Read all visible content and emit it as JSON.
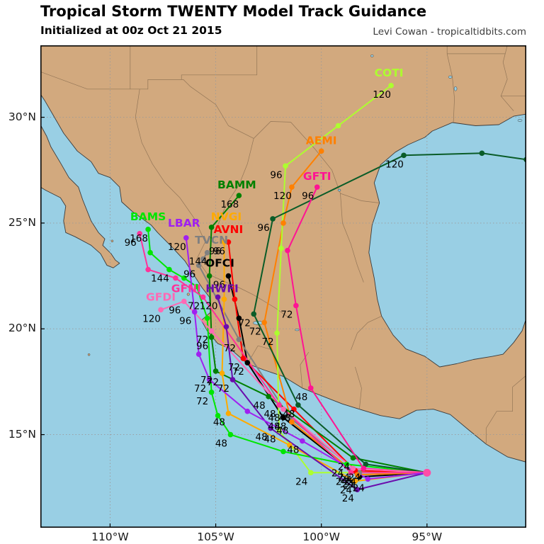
{
  "header": {
    "title": "Tropical Storm TWENTY Model Track Guidance",
    "subtitle": "Initialized at 00z Oct 21 2015",
    "credit": "Levi Cowan - tropicaltidbits.com"
  },
  "map": {
    "lon_min": -113.3,
    "lon_max": -90.3,
    "lat_min": 10.6,
    "lat_max": 33.4,
    "colors": {
      "water": "#99cfe4",
      "land": "#d2a97e",
      "coast": "#3c3c3c",
      "state_border": "#8f7355",
      "grid": "#9a9a9a",
      "frame": "#000000",
      "start_marker": "#ff4da6"
    }
  },
  "axes": {
    "x_ticks": [
      {
        "lon": -110,
        "label": "110°W"
      },
      {
        "lon": -105,
        "label": "105°W"
      },
      {
        "lon": -100,
        "label": "100°W"
      },
      {
        "lon": -95,
        "label": "95°W"
      }
    ],
    "y_ticks": [
      {
        "lat": 30,
        "label": "30°N"
      },
      {
        "lat": 25,
        "label": "25°N"
      },
      {
        "lat": 20,
        "label": "20°N"
      },
      {
        "lat": 15,
        "label": "15°N"
      }
    ]
  },
  "chart_data": {
    "type": "line",
    "title": "Tropical Storm TWENTY Model Track Guidance",
    "subtitle": "Initialized at 00z Oct 21 2015",
    "grid": true,
    "start": {
      "lon": -95.0,
      "lat": 13.2
    },
    "hour_label_values": [
      "24",
      "48",
      "72",
      "96",
      "120",
      "144",
      "168"
    ],
    "series": [
      {
        "model": "OFCI",
        "color": "#000000",
        "label_lon": -104.8,
        "label_lat": 23.1,
        "points": [
          [
            -95.0,
            13.2,
            ""
          ],
          [
            -98.2,
            13.0,
            "24"
          ],
          [
            -101.8,
            15.8,
            "48"
          ],
          [
            -103.5,
            18.4,
            "72"
          ],
          [
            -103.9,
            20.5,
            ""
          ],
          [
            -104.4,
            22.5,
            "96"
          ]
        ]
      },
      {
        "model": "TVCN",
        "color": "#808080",
        "label_lon": -105.2,
        "label_lat": 24.2,
        "points": [
          [
            -95.0,
            13.2,
            ""
          ],
          [
            -98.2,
            13.2,
            "24"
          ],
          [
            -101.5,
            15.8,
            "48"
          ],
          [
            -103.9,
            19.5,
            "72"
          ],
          [
            -105.8,
            23.0,
            "96"
          ],
          [
            -105.6,
            23.3,
            ""
          ],
          [
            -105.4,
            23.6,
            "144"
          ]
        ]
      },
      {
        "model": "AVNI",
        "color": "#ff0000",
        "label_lon": -104.4,
        "label_lat": 24.7,
        "points": [
          [
            -95.0,
            13.2,
            ""
          ],
          [
            -98.4,
            13.3,
            "24"
          ],
          [
            -101.3,
            16.2,
            "48"
          ],
          [
            -103.7,
            18.6,
            "72"
          ],
          [
            -104.1,
            21.4,
            ""
          ],
          [
            -104.4,
            24.1,
            "96"
          ]
        ]
      },
      {
        "model": "AEMI",
        "color": "#ff8000",
        "label_lon": -100.0,
        "label_lat": 28.9,
        "points": [
          [
            -95.0,
            13.2,
            ""
          ],
          [
            -98.3,
            13.1,
            "24"
          ],
          [
            -101.4,
            15.6,
            "48"
          ],
          [
            -102.7,
            20.3,
            "72"
          ],
          [
            -101.8,
            25.0,
            ""
          ],
          [
            -101.4,
            26.7,
            "120"
          ],
          [
            -100.0,
            28.4,
            ""
          ]
        ]
      },
      {
        "model": "NVGI",
        "color": "#ffaa00",
        "label_lon": -104.5,
        "label_lat": 25.3,
        "points": [
          [
            -95.0,
            13.2,
            ""
          ],
          [
            -98.4,
            12.8,
            "24"
          ],
          [
            -101.5,
            14.5,
            ""
          ],
          [
            -104.4,
            16.0,
            "48"
          ],
          [
            -104.7,
            17.9,
            "72"
          ],
          [
            -104.6,
            21.4,
            ""
          ],
          [
            -104.6,
            24.1,
            "96"
          ]
        ]
      },
      {
        "model": "COTI",
        "color": "#adff2f",
        "label_lon": -96.8,
        "label_lat": 32.1,
        "points": [
          [
            -95.0,
            13.2,
            ""
          ],
          [
            -100.5,
            13.2,
            "24"
          ],
          [
            -102.0,
            15.2,
            "48"
          ],
          [
            -102.1,
            19.8,
            "72"
          ],
          [
            -101.9,
            23.8,
            ""
          ],
          [
            -101.7,
            27.7,
            "96"
          ],
          [
            -99.2,
            29.6,
            ""
          ],
          [
            -96.7,
            31.5,
            "120"
          ]
        ]
      },
      {
        "model": "BAMS",
        "color": "#00e600",
        "label_lon": -108.2,
        "label_lat": 25.3,
        "points": [
          [
            -95.0,
            13.2,
            ""
          ],
          [
            -98.8,
            13.6,
            "24"
          ],
          [
            -101.8,
            14.2,
            ""
          ],
          [
            -104.3,
            15.0,
            "48"
          ],
          [
            -104.9,
            15.9,
            ""
          ],
          [
            -105.2,
            17.0,
            "72"
          ],
          [
            -105.4,
            20.5,
            ""
          ],
          [
            -105.9,
            22.0,
            ""
          ],
          [
            -106.5,
            22.4,
            ""
          ],
          [
            -107.2,
            22.8,
            "144"
          ],
          [
            -108.1,
            23.6,
            ""
          ],
          [
            -108.2,
            24.7,
            "168"
          ]
        ]
      },
      {
        "model": "BAMM",
        "color": "#008000",
        "label_lon": -104.0,
        "label_lat": 26.8,
        "points": [
          [
            -95.0,
            13.2,
            ""
          ],
          [
            -98.5,
            13.9,
            "24"
          ],
          [
            -102.5,
            16.8,
            "48"
          ],
          [
            -105.0,
            18.0,
            "72"
          ],
          [
            -105.2,
            19.6,
            "96"
          ],
          [
            -105.3,
            22.5,
            ""
          ],
          [
            -105.2,
            24.8,
            ""
          ],
          [
            -103.9,
            26.3,
            "168"
          ]
        ]
      },
      {
        "model": "",
        "color": "#0a5c28",
        "label_lon": null,
        "label_lat": null,
        "points": [
          [
            -95.0,
            13.2,
            ""
          ],
          [
            -97.9,
            13.6,
            ""
          ],
          [
            -101.1,
            16.4,
            "48"
          ],
          [
            -103.2,
            20.7,
            "72"
          ],
          [
            -102.3,
            25.2,
            "96"
          ],
          [
            -96.1,
            28.2,
            "120"
          ],
          [
            -92.4,
            28.3,
            ""
          ],
          [
            -90.3,
            28.0,
            ""
          ]
        ]
      },
      {
        "model": "GFTI",
        "color": "#ff1493",
        "label_lon": -100.2,
        "label_lat": 27.2,
        "points": [
          [
            -95.0,
            13.2,
            ""
          ],
          [
            -98.0,
            13.4,
            "24"
          ],
          [
            -100.5,
            17.2,
            "48"
          ],
          [
            -101.2,
            21.1,
            "72"
          ],
          [
            -101.6,
            23.7,
            ""
          ],
          [
            -100.2,
            26.7,
            "96"
          ]
        ]
      },
      {
        "model": "GFDI",
        "color": "#ff69b4",
        "label_lon": -107.6,
        "label_lat": 21.5,
        "points": [
          [
            -95.0,
            13.2,
            ""
          ],
          [
            -98.5,
            13.4,
            "24"
          ],
          [
            -101.8,
            16.2,
            "48"
          ],
          [
            -105.2,
            19.9,
            "72"
          ],
          [
            -106.5,
            21.3,
            "96"
          ],
          [
            -107.6,
            20.9,
            "120"
          ]
        ]
      },
      {
        "model": "GFNI",
        "color": "#ff3399",
        "label_lon": -106.4,
        "label_lat": 21.9,
        "points": [
          [
            -95.0,
            13.2,
            ""
          ],
          [
            -98.6,
            13.2,
            "24"
          ],
          [
            -102.0,
            16.4,
            "48"
          ],
          [
            -105.6,
            21.5,
            "72"
          ],
          [
            -106.9,
            22.4,
            ""
          ],
          [
            -108.2,
            22.8,
            ""
          ],
          [
            -108.6,
            24.5,
            "96"
          ]
        ]
      },
      {
        "model": "HWFI",
        "color": "#6a0dad",
        "label_lon": -104.7,
        "label_lat": 21.9,
        "points": [
          [
            -95.0,
            13.2,
            ""
          ],
          [
            -98.3,
            12.4,
            "24"
          ],
          [
            -102.4,
            15.3,
            "48"
          ],
          [
            -104.2,
            17.6,
            "72"
          ],
          [
            -104.5,
            20.1,
            ""
          ],
          [
            -104.9,
            21.5,
            "120"
          ]
        ]
      },
      {
        "model": "LBAR",
        "color": "#a020f0",
        "label_lon": -106.5,
        "label_lat": 25.0,
        "points": [
          [
            -95.0,
            13.2,
            ""
          ],
          [
            -97.8,
            12.9,
            "24"
          ],
          [
            -100.9,
            14.7,
            "48"
          ],
          [
            -103.5,
            16.1,
            ""
          ],
          [
            -105.3,
            17.6,
            "72"
          ],
          [
            -105.8,
            18.8,
            ""
          ],
          [
            -106.0,
            20.8,
            "96"
          ],
          [
            -106.4,
            24.3,
            "120"
          ]
        ]
      }
    ]
  }
}
